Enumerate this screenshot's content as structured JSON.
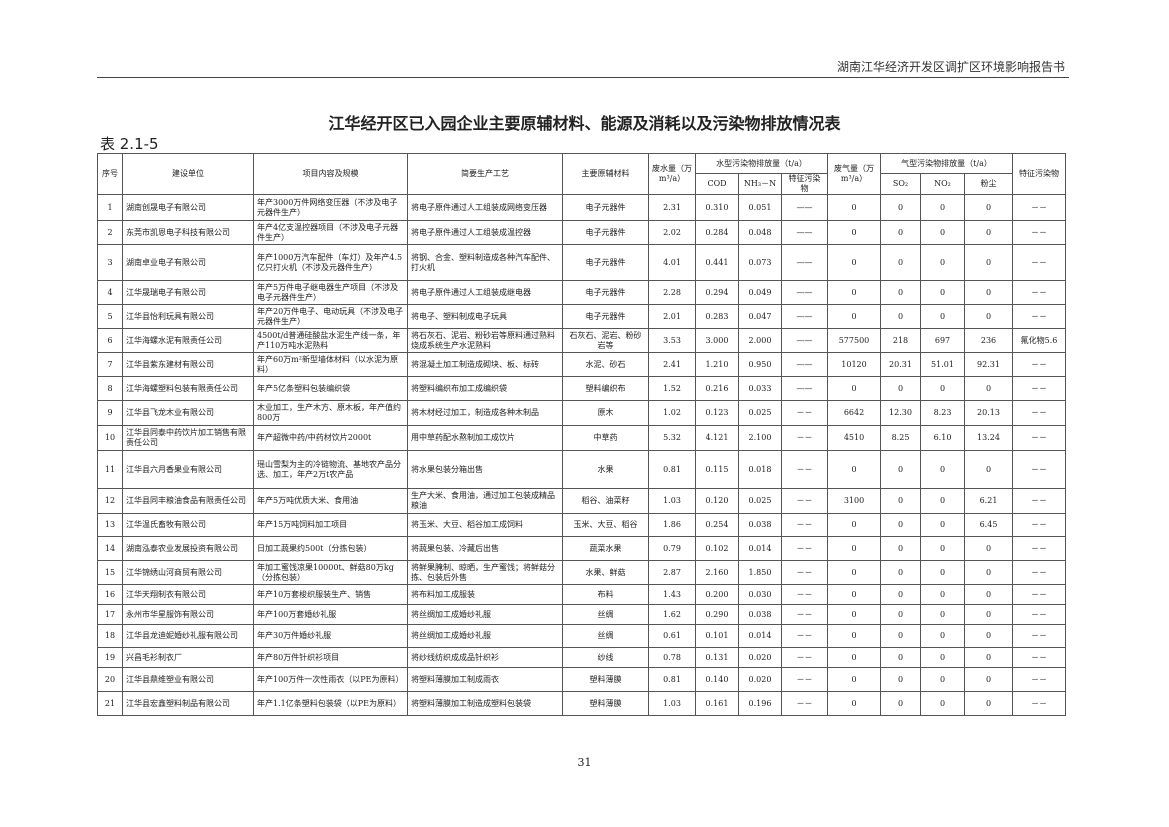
{
  "header": {
    "report_title": "湖南江华经济开发区调扩区环境影响报告书"
  },
  "title": "江华经开区已入园企业主要原辅材料、能源及消耗以及污染物排放情况表",
  "table_no": "表 2.1-5",
  "columns": {
    "seq": "序号",
    "unit": "建设单位",
    "project": "项目内容及规模",
    "process": "简要生产工艺",
    "materials": "主要原辅材料",
    "wastewater": "废水量（万m³/a）",
    "water_group": "水型污染物排放量（t/a）",
    "cod": "COD",
    "nh3": "NH₃－N",
    "water_special": "特征污染物",
    "waste_gas": "废气量（万m³/a）",
    "gas_group": "气型污染物排放量（t/a）",
    "so2": "SO₂",
    "no2": "NO₂",
    "dust": "粉尘",
    "special": "特征污染物"
  },
  "rows": [
    [
      "1",
      "湖南创晟电子有限公司",
      "年产3000万件网络变压器（不涉及电子元器件生产）",
      "将电子原件通过人工组装成网络变压器",
      "电子元器件",
      "2.31",
      "0.310",
      "0.051",
      "——",
      "0",
      "0",
      "0",
      "0",
      "－－"
    ],
    [
      "2",
      "东莞市凯恩电子科技有限公司",
      "年产4亿支温控器项目（不涉及电子元器件生产）",
      "将电子原件通过人工组装成温控器",
      "电子元器件",
      "2.02",
      "0.284",
      "0.048",
      "——",
      "0",
      "0",
      "0",
      "0",
      "－－"
    ],
    [
      "3",
      "湖南卓业电子有限公司",
      "年产1000万汽车配件（车灯）及年产4.5亿只打火机（不涉及元器件生产）",
      "将钢、合金、塑料制造成各种汽车配件、打火机",
      "电子元器件",
      "4.01",
      "0.441",
      "0.073",
      "——",
      "0",
      "0",
      "0",
      "0",
      "－－"
    ],
    [
      "4",
      "江华晟瑞电子有限公司",
      "年产5万件电子继电器生产项目（不涉及电子元器件生产）",
      "将电子原件通过人工组装成继电器",
      "电子元器件",
      "2.28",
      "0.294",
      "0.049",
      "——",
      "0",
      "0",
      "0",
      "0",
      "－－"
    ],
    [
      "5",
      "江华县怡利玩具有限公司",
      "年产20万件电子、电动玩具（不涉及电子元器件生产）",
      "将电子、塑料制成电子玩具",
      "电子元器件",
      "2.01",
      "0.283",
      "0.047",
      "——",
      "0",
      "0",
      "0",
      "0",
      "－－"
    ],
    [
      "6",
      "江华海螺水泥有限责任公司",
      "4500t/d普通硅酸盐水泥生产线一条，年产110万吨水泥熟料",
      "将石灰石、泥岩、粉砂岩等原料通过熟料烧成系统生产水泥熟料",
      "石灰石、泥岩、粉砂岩等",
      "3.53",
      "3.000",
      "2.000",
      "——",
      "577500",
      "218",
      "697",
      "236",
      "氟化物5.6"
    ],
    [
      "7",
      "江华县紫东建材有限公司",
      "年产60万m²新型墙体材料（以水泥为原料）",
      "将混凝土加工制造成砌块、板、标砖",
      "水泥、砂石",
      "2.41",
      "1.210",
      "0.950",
      "——",
      "10120",
      "20.31",
      "51.01",
      "92.31",
      "－－"
    ],
    [
      "8",
      "江华海螺塑料包装有限责任公司",
      "年产5亿条塑料包装编织袋",
      "将塑料编织布加工成编织袋",
      "塑料编织布",
      "1.52",
      "0.216",
      "0.033",
      "——",
      "0",
      "0",
      "0",
      "0",
      "－－"
    ],
    [
      "9",
      "江华县飞龙木业有限公司",
      "木业加工，生产木方、原木板，年产值约800万",
      "将木材经过加工，制造成各种木制品",
      "原木",
      "1.02",
      "0.123",
      "0.025",
      "－－",
      "6642",
      "12.30",
      "8.23",
      "20.13",
      "－－"
    ],
    [
      "10",
      "江华县同泰中药饮片加工销售有限责任公司",
      "年产超微中药/中药材饮片2000t",
      "用中草药配水熬制加工成饮片",
      "中草药",
      "5.32",
      "4.121",
      "2.100",
      "－－",
      "4510",
      "8.25",
      "6.10",
      "13.24",
      "－－"
    ],
    [
      "11",
      "江华县六月香果业有限公司",
      "瑶山雪梨为主的冷链物流、基地农产品分选、加工，年产2万t农产品",
      "将水果包装分箱出售",
      "水果",
      "0.81",
      "0.115",
      "0.018",
      "－－",
      "0",
      "0",
      "0",
      "0",
      "－－"
    ],
    [
      "12",
      "江华县同丰粮油食品有限责任公司",
      "年产5万吨优质大米、食用油",
      "生产大米、食用油，通过加工包装成精品粮油",
      "稻谷、油菜籽",
      "1.03",
      "0.120",
      "0.025",
      "－－",
      "3100",
      "0",
      "0",
      "6.21",
      "－－"
    ],
    [
      "13",
      "江华温氏畜牧有限公司",
      "年产15万吨饲料加工项目",
      "将玉米、大豆、稻谷加工成饲料",
      "玉米、大豆、稻谷",
      "1.86",
      "0.254",
      "0.038",
      "－－",
      "0",
      "0",
      "0",
      "6.45",
      "－－"
    ],
    [
      "14",
      "湖南泓泰农业发展投资有限公司",
      "日加工蔬果约500t（分拣包装）",
      "将蔬果包装、冷藏后出售",
      "蔬菜水果",
      "0.79",
      "0.102",
      "0.014",
      "－－",
      "0",
      "0",
      "0",
      "0",
      "－－"
    ],
    [
      "15",
      "江华锦绣山河商贸有限公司",
      "年加工蜜饯凉果10000t、鲜菇80万kg（分拣包装）",
      "将鲜果腌制、晾晒，生产蜜饯；将鲜菇分拣、包装后外售",
      "水果、鲜菇",
      "2.87",
      "2.160",
      "1.850",
      "－－",
      "0",
      "0",
      "0",
      "0",
      "－－"
    ],
    [
      "16",
      "江华天翔制衣有限公司",
      "年产10万套梭织服装生产、销售",
      "将布料加工成服装",
      "布料",
      "1.43",
      "0.200",
      "0.030",
      "－－",
      "0",
      "0",
      "0",
      "0",
      "－－"
    ],
    [
      "17",
      "永州市华星服饰有限公司",
      "年产100万套婚纱礼服",
      "将丝绸加工成婚纱礼服",
      "丝绸",
      "1.62",
      "0.290",
      "0.038",
      "－－",
      "0",
      "0",
      "0",
      "0",
      "－－"
    ],
    [
      "18",
      "江华县龙迪妮婚纱礼服有限公司",
      "年产30万件婚纱礼服",
      "将丝绸加工成婚纱礼服",
      "丝绸",
      "0.61",
      "0.101",
      "0.014",
      "－－",
      "0",
      "0",
      "0",
      "0",
      "－－"
    ],
    [
      "19",
      "兴昌毛衫制衣厂",
      "年产80万件针织衫项目",
      "将纱线纺织成成品针织衫",
      "纱线",
      "0.78",
      "0.131",
      "0.020",
      "－－",
      "0",
      "0",
      "0",
      "0",
      "－－"
    ],
    [
      "20",
      "江华县鼎维塑业有限公司",
      "年产100万件一次性雨衣（以PE为原料）",
      "将塑料薄膜加工制成雨衣",
      "塑料薄膜",
      "0.81",
      "0.140",
      "0.020",
      "－－",
      "0",
      "0",
      "0",
      "0",
      "－－"
    ],
    [
      "21",
      "江华县宏鑫塑料制品有限公司",
      "年产1.1亿条塑料包装袋（以PE为原料）",
      "将塑料薄膜加工制造成塑料包装袋",
      "塑料薄膜",
      "1.03",
      "0.161",
      "0.196",
      "－－",
      "0",
      "0",
      "0",
      "0",
      "－－"
    ]
  ],
  "page_number": "31"
}
